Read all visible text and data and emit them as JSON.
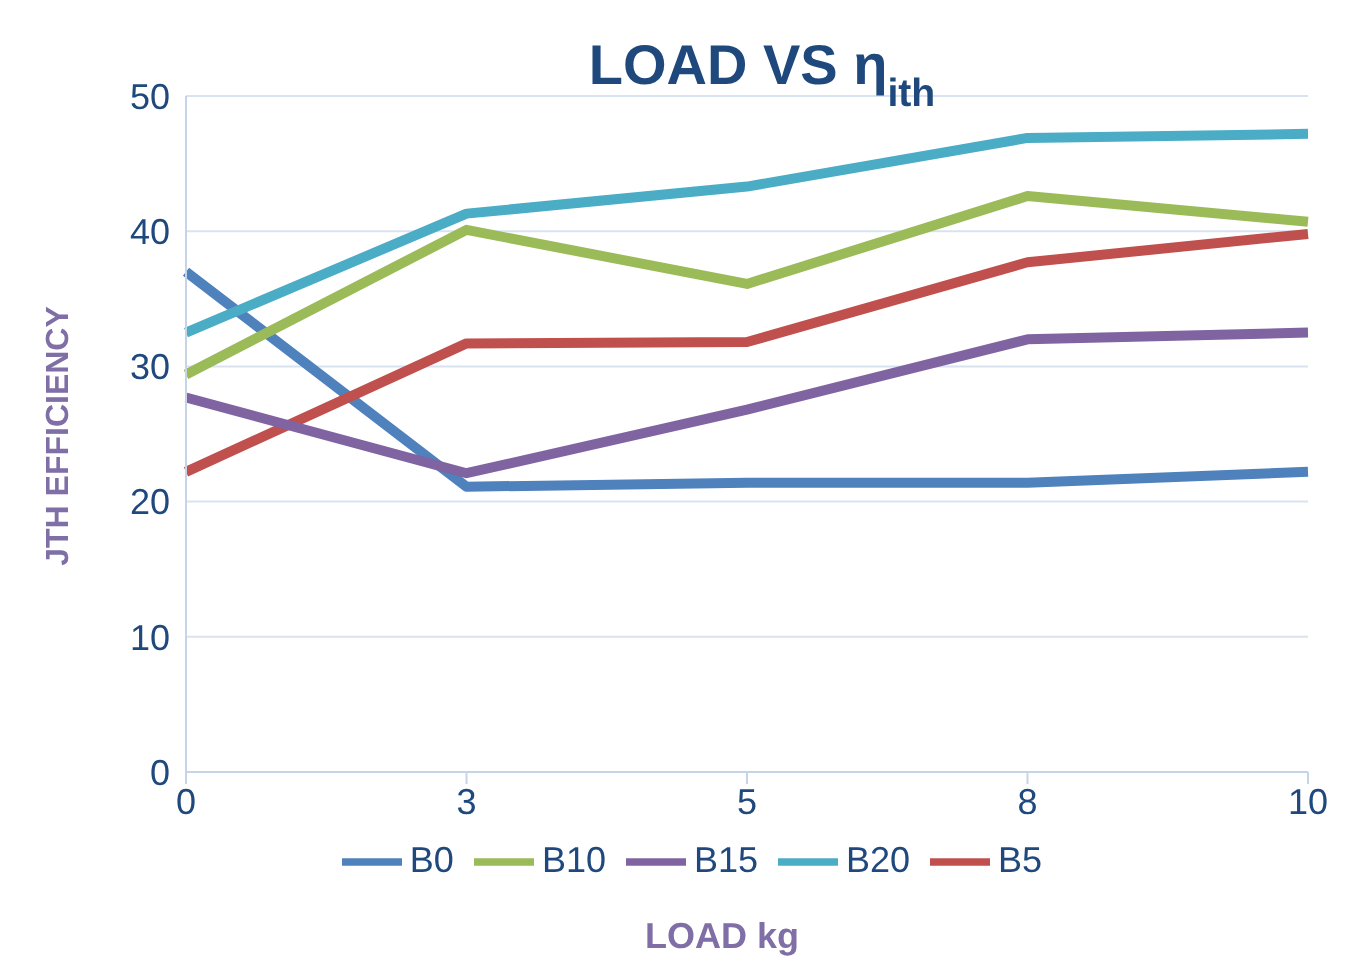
{
  "chart_data": {
    "type": "line",
    "title": "LOAD VS η$_{ith}$",
    "xlabel": "LOAD kg",
    "ylabel": "JTH EFFICIENCY",
    "categories": [
      "0",
      "3",
      "5",
      "8",
      "10"
    ],
    "series": [
      {
        "name": "B0",
        "color": "#4f81bd",
        "values": [
          37.0,
          21.1,
          21.4,
          21.4,
          22.2
        ]
      },
      {
        "name": "B5",
        "color": "#c0504d",
        "values": [
          22.2,
          31.7,
          31.8,
          37.7,
          39.8
        ]
      },
      {
        "name": "B10",
        "color": "#9bbb59",
        "values": [
          29.4,
          40.1,
          36.1,
          42.6,
          40.7
        ]
      },
      {
        "name": "B15",
        "color": "#8064a2",
        "values": [
          27.7,
          22.1,
          26.8,
          32.0,
          32.5
        ]
      },
      {
        "name": "B20",
        "color": "#4bacc6",
        "values": [
          32.5,
          41.3,
          43.3,
          46.9,
          47.2
        ]
      }
    ],
    "ylim": [
      0,
      50
    ],
    "yticks": [
      0,
      10,
      20,
      30,
      40,
      50
    ],
    "grid": "y",
    "legend": "bottom",
    "marker": "none",
    "line_style": "solid"
  }
}
